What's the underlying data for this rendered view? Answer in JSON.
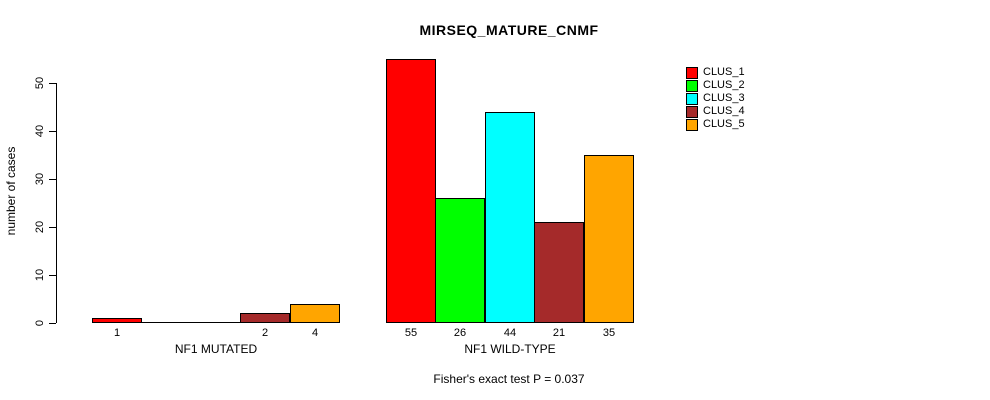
{
  "chart_data": {
    "type": "bar",
    "title": "MIRSEQ_MATURE_CNMF",
    "xlabel": "",
    "ylabel": "number of cases",
    "ylim": [
      0,
      55
    ],
    "yticks": [
      0,
      10,
      20,
      30,
      40,
      50
    ],
    "grid": false,
    "legend_position": "top-right",
    "categories": [
      "NF1 MUTATED",
      "NF1 WILD-TYPE"
    ],
    "series": [
      {
        "name": "CLUS_1",
        "color": "#ff0000",
        "values": [
          1,
          55
        ]
      },
      {
        "name": "CLUS_2",
        "color": "#00ff00",
        "values": [
          0,
          26
        ]
      },
      {
        "name": "CLUS_3",
        "color": "#00ffff",
        "values": [
          0,
          44
        ]
      },
      {
        "name": "CLUS_4",
        "color": "#a52a2a",
        "values": [
          2,
          21
        ]
      },
      {
        "name": "CLUS_5",
        "color": "#ffa500",
        "values": [
          4,
          35
        ]
      }
    ],
    "bar_value_labels_shown": true,
    "annotation": "Fisher's exact test P = 0.037"
  },
  "colors": {
    "axis": "#000000",
    "text": "#000000",
    "background": "#ffffff"
  }
}
